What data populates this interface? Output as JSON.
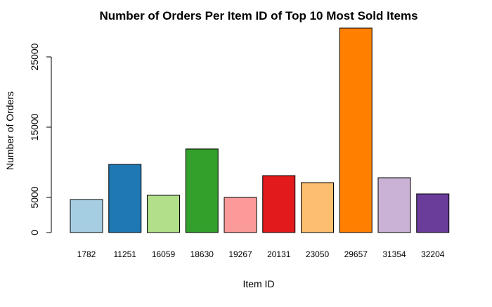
{
  "chart_data": {
    "type": "bar",
    "title": "Number of Orders Per Item ID of Top 10 Most Sold Items",
    "xlabel": "Item ID",
    "ylabel": "Number of Orders",
    "categories": [
      "1782",
      "11251",
      "16059",
      "18630",
      "19267",
      "20131",
      "23050",
      "29657",
      "31354",
      "32204"
    ],
    "values": [
      4700,
      9700,
      5300,
      11900,
      5000,
      8100,
      7100,
      29100,
      7800,
      5500
    ],
    "colors": [
      "#A6CEE3",
      "#1F78B4",
      "#B2DF8A",
      "#33A02C",
      "#FB9A99",
      "#E31A1C",
      "#FDBF6F",
      "#FF7F00",
      "#CAB2D6",
      "#6A3D9A"
    ],
    "y_ticks": [
      0,
      5000,
      15000,
      25000
    ],
    "ylim": [
      0,
      30000
    ],
    "grid": false,
    "legend": "none"
  }
}
